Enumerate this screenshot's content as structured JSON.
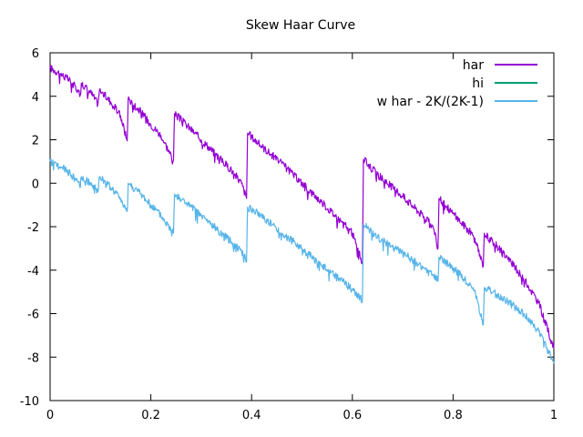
{
  "chart_data": {
    "type": "line",
    "title": "Skew Haar Curve",
    "xlabel": "",
    "ylabel": "",
    "xlim": [
      0,
      1
    ],
    "ylim": [
      -10,
      6
    ],
    "xticks": [
      0,
      0.2,
      0.4,
      0.6,
      0.8,
      1
    ],
    "xtick_labels": [
      "0",
      "0.2",
      "0.4",
      "0.6",
      "0.8",
      "1"
    ],
    "yticks": [
      -10,
      -8,
      -6,
      -4,
      -2,
      0,
      2,
      4,
      6
    ],
    "ytick_labels": [
      "-10",
      "-8",
      "-6",
      "-4",
      "-2",
      "0",
      "2",
      "4",
      "6"
    ],
    "grid": false,
    "legend_position": "top-right",
    "series": [
      {
        "name": "har",
        "color": "#9400d3",
        "points": [
          [
            0,
            5.3
          ],
          [
            0.02,
            5.05
          ],
          [
            0.04,
            4.7
          ],
          [
            0.055,
            4.3
          ],
          [
            0.06,
            4.05
          ],
          [
            0.062,
            4.6
          ],
          [
            0.08,
            4.2
          ],
          [
            0.095,
            3.65
          ],
          [
            0.098,
            4.3
          ],
          [
            0.12,
            3.75
          ],
          [
            0.14,
            3.1
          ],
          [
            0.153,
            1.95
          ],
          [
            0.155,
            3.9
          ],
          [
            0.18,
            3.3
          ],
          [
            0.2,
            2.7
          ],
          [
            0.22,
            2.2
          ],
          [
            0.245,
            1.05
          ],
          [
            0.247,
            3.2
          ],
          [
            0.27,
            2.7
          ],
          [
            0.3,
            2.0
          ],
          [
            0.33,
            1.3
          ],
          [
            0.36,
            0.6
          ],
          [
            0.38,
            0.0
          ],
          [
            0.39,
            -0.7
          ],
          [
            0.392,
            2.3
          ],
          [
            0.42,
            1.7
          ],
          [
            0.46,
            0.9
          ],
          [
            0.5,
            0.0
          ],
          [
            0.54,
            -0.9
          ],
          [
            0.58,
            -1.8
          ],
          [
            0.6,
            -2.3
          ],
          [
            0.62,
            -3.7
          ],
          [
            0.622,
            1.1
          ],
          [
            0.65,
            0.4
          ],
          [
            0.7,
            -0.6
          ],
          [
            0.74,
            -1.5
          ],
          [
            0.76,
            -2.0
          ],
          [
            0.77,
            -3.0
          ],
          [
            0.772,
            -0.7
          ],
          [
            0.8,
            -1.4
          ],
          [
            0.84,
            -2.4
          ],
          [
            0.86,
            -3.8
          ],
          [
            0.862,
            -2.3
          ],
          [
            0.9,
            -3.2
          ],
          [
            0.94,
            -4.4
          ],
          [
            0.97,
            -5.5
          ],
          [
            1.0,
            -7.6
          ]
        ]
      },
      {
        "name": "hi",
        "color": "#009e73",
        "points": []
      },
      {
        "name": "w har - 2K/(2K-1)",
        "color": "#56b4e9",
        "points": [
          [
            0,
            1.0
          ],
          [
            0.02,
            0.75
          ],
          [
            0.04,
            0.45
          ],
          [
            0.055,
            0.05
          ],
          [
            0.06,
            -0.2
          ],
          [
            0.062,
            0.3
          ],
          [
            0.08,
            0.0
          ],
          [
            0.095,
            -0.4
          ],
          [
            0.098,
            0.3
          ],
          [
            0.12,
            -0.2
          ],
          [
            0.14,
            -0.7
          ],
          [
            0.153,
            -1.3
          ],
          [
            0.155,
            0.0
          ],
          [
            0.18,
            -0.5
          ],
          [
            0.2,
            -1.0
          ],
          [
            0.22,
            -1.5
          ],
          [
            0.245,
            -2.3
          ],
          [
            0.247,
            -0.5
          ],
          [
            0.27,
            -0.9
          ],
          [
            0.3,
            -1.5
          ],
          [
            0.33,
            -2.1
          ],
          [
            0.36,
            -2.7
          ],
          [
            0.38,
            -3.1
          ],
          [
            0.39,
            -3.6
          ],
          [
            0.392,
            -1.1
          ],
          [
            0.42,
            -1.5
          ],
          [
            0.46,
            -2.3
          ],
          [
            0.5,
            -3.0
          ],
          [
            0.54,
            -3.8
          ],
          [
            0.58,
            -4.5
          ],
          [
            0.6,
            -4.9
          ],
          [
            0.62,
            -5.4
          ],
          [
            0.622,
            -1.9
          ],
          [
            0.65,
            -2.5
          ],
          [
            0.7,
            -3.2
          ],
          [
            0.74,
            -3.9
          ],
          [
            0.76,
            -4.2
          ],
          [
            0.77,
            -4.5
          ],
          [
            0.772,
            -3.4
          ],
          [
            0.8,
            -3.9
          ],
          [
            0.84,
            -4.8
          ],
          [
            0.86,
            -6.5
          ],
          [
            0.862,
            -4.8
          ],
          [
            0.9,
            -5.3
          ],
          [
            0.94,
            -6.0
          ],
          [
            0.97,
            -6.8
          ],
          [
            1.0,
            -8.3
          ]
        ]
      }
    ]
  }
}
